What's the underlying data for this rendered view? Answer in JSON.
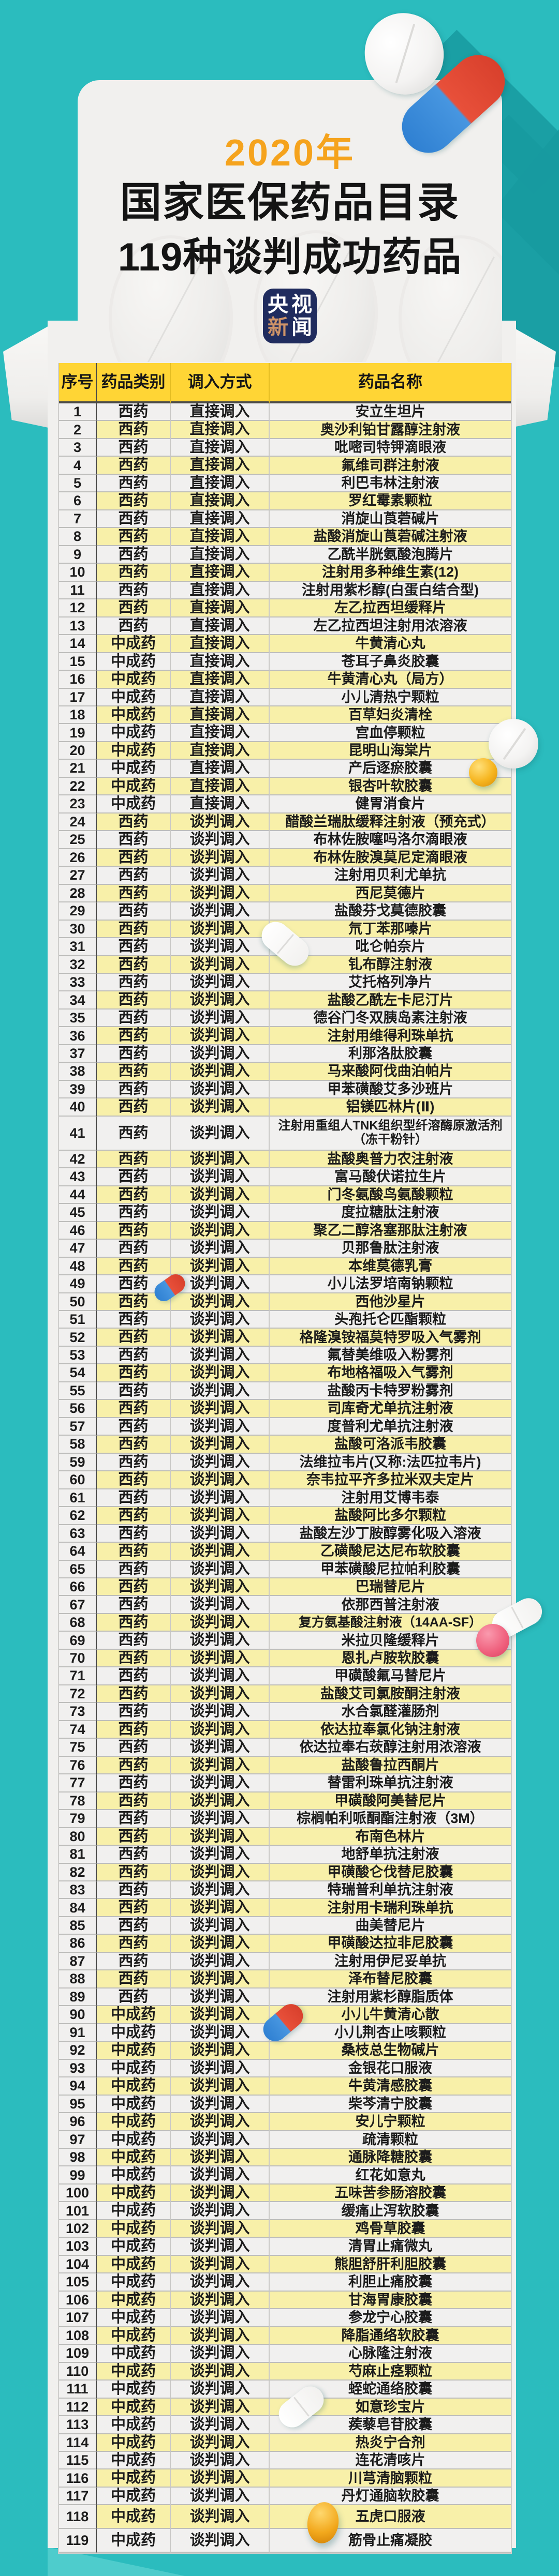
{
  "page": {
    "background_color": "#2bbcbe",
    "card_color": "#f1f0ee",
    "header_yellow": "#ffd535",
    "row_yellow": "#f8f0a9",
    "row_gray": "#f1f0ef",
    "accent_orange": "#f5a31d",
    "logo_navy": "#202c5e"
  },
  "header": {
    "year": "2020年",
    "title": "国家医保药品目录",
    "subtitle": "119种谈判成功药品",
    "logo_char_1": "央",
    "logo_char_2": "视",
    "logo_char_3": "新",
    "logo_char_4": "闻"
  },
  "table": {
    "columns": [
      "序号",
      "药品类别",
      "调入方式",
      "药品名称"
    ],
    "rows": [
      [
        1,
        "西药",
        "直接调入",
        "安立生坦片"
      ],
      [
        2,
        "西药",
        "直接调入",
        "奥沙利铂甘露醇注射液"
      ],
      [
        3,
        "西药",
        "直接调入",
        "吡嘧司特钾滴眼液"
      ],
      [
        4,
        "西药",
        "直接调入",
        "氟维司群注射液"
      ],
      [
        5,
        "西药",
        "直接调入",
        "利巴韦林注射液"
      ],
      [
        6,
        "西药",
        "直接调入",
        "罗红霉素颗粒"
      ],
      [
        7,
        "西药",
        "直接调入",
        "消旋山莨菪碱片"
      ],
      [
        8,
        "西药",
        "直接调入",
        "盐酸消旋山莨菪碱注射液"
      ],
      [
        9,
        "西药",
        "直接调入",
        "乙酰半胱氨酸泡腾片"
      ],
      [
        10,
        "西药",
        "直接调入",
        "注射用多种维生素(12)"
      ],
      [
        11,
        "西药",
        "直接调入",
        "注射用紫杉醇(白蛋白结合型)"
      ],
      [
        12,
        "西药",
        "直接调入",
        "左乙拉西坦缓释片"
      ],
      [
        13,
        "西药",
        "直接调入",
        "左乙拉西坦注射用浓溶液"
      ],
      [
        14,
        "中成药",
        "直接调入",
        "牛黄清心丸"
      ],
      [
        15,
        "中成药",
        "直接调入",
        "苍耳子鼻炎胶囊"
      ],
      [
        16,
        "中成药",
        "直接调入",
        "牛黄清心丸（局方）"
      ],
      [
        17,
        "中成药",
        "直接调入",
        "小儿清热宁颗粒"
      ],
      [
        18,
        "中成药",
        "直接调入",
        "百草妇炎清栓"
      ],
      [
        19,
        "中成药",
        "直接调入",
        "宫血停颗粒"
      ],
      [
        20,
        "中成药",
        "直接调入",
        "昆明山海棠片"
      ],
      [
        21,
        "中成药",
        "直接调入",
        "产后逐瘀胶囊"
      ],
      [
        22,
        "中成药",
        "直接调入",
        "银杏叶软胶囊"
      ],
      [
        23,
        "中成药",
        "直接调入",
        "健胃消食片"
      ],
      [
        24,
        "西药",
        "谈判调入",
        "醋酸兰瑞肽缓释注射液（预充式）"
      ],
      [
        25,
        "西药",
        "谈判调入",
        "布林佐胺噻吗洛尔滴眼液"
      ],
      [
        26,
        "西药",
        "谈判调入",
        "布林佐胺溴莫尼定滴眼液"
      ],
      [
        27,
        "西药",
        "谈判调入",
        "注射用贝利尤单抗"
      ],
      [
        28,
        "西药",
        "谈判调入",
        "西尼莫德片"
      ],
      [
        29,
        "西药",
        "谈判调入",
        "盐酸芬戈莫德胶囊"
      ],
      [
        30,
        "西药",
        "谈判调入",
        "氘丁苯那嗪片"
      ],
      [
        31,
        "西药",
        "谈判调入",
        "吡仑帕奈片"
      ],
      [
        32,
        "西药",
        "谈判调入",
        "钆布醇注射液"
      ],
      [
        33,
        "西药",
        "谈判调入",
        "艾托格列净片"
      ],
      [
        34,
        "西药",
        "谈判调入",
        "盐酸乙酰左卡尼汀片"
      ],
      [
        35,
        "西药",
        "谈判调入",
        "德谷门冬双胰岛素注射液"
      ],
      [
        36,
        "西药",
        "谈判调入",
        "注射用维得利珠单抗"
      ],
      [
        37,
        "西药",
        "谈判调入",
        "利那洛肽胶囊"
      ],
      [
        38,
        "西药",
        "谈判调入",
        "马来酸阿伐曲泊帕片"
      ],
      [
        39,
        "西药",
        "谈判调入",
        "甲苯磺酸艾多沙班片"
      ],
      [
        40,
        "西药",
        "谈判调入",
        "铝镁匹林片(Ⅱ)"
      ],
      [
        41,
        "西药",
        "谈判调入",
        "注射用重组人TNK组织型纤溶酶原激活剂（冻干粉针）"
      ],
      [
        42,
        "西药",
        "谈判调入",
        "盐酸奥普力农注射液"
      ],
      [
        43,
        "西药",
        "谈判调入",
        "富马酸伏诺拉生片"
      ],
      [
        44,
        "西药",
        "谈判调入",
        "门冬氨酸鸟氨酸颗粒"
      ],
      [
        45,
        "西药",
        "谈判调入",
        "度拉糖肽注射液"
      ],
      [
        46,
        "西药",
        "谈判调入",
        "聚乙二醇洛塞那肽注射液"
      ],
      [
        47,
        "西药",
        "谈判调入",
        "贝那鲁肽注射液"
      ],
      [
        48,
        "西药",
        "谈判调入",
        "本维莫德乳膏"
      ],
      [
        49,
        "西药",
        "谈判调入",
        "小儿法罗培南钠颗粒"
      ],
      [
        50,
        "西药",
        "谈判调入",
        "西他沙星片"
      ],
      [
        51,
        "西药",
        "谈判调入",
        "头孢托仑匹酯颗粒"
      ],
      [
        52,
        "西药",
        "谈判调入",
        "格隆溴铵福莫特罗吸入气雾剂"
      ],
      [
        53,
        "西药",
        "谈判调入",
        "氟替美维吸入粉雾剂"
      ],
      [
        54,
        "西药",
        "谈判调入",
        "布地格福吸入气雾剂"
      ],
      [
        55,
        "西药",
        "谈判调入",
        "盐酸丙卡特罗粉雾剂"
      ],
      [
        56,
        "西药",
        "谈判调入",
        "司库奇尤单抗注射液"
      ],
      [
        57,
        "西药",
        "谈判调入",
        "度普利尤单抗注射液"
      ],
      [
        58,
        "西药",
        "谈判调入",
        "盐酸可洛派韦胶囊"
      ],
      [
        59,
        "西药",
        "谈判调入",
        "法维拉韦片(又称:法匹拉韦片)"
      ],
      [
        60,
        "西药",
        "谈判调入",
        "奈韦拉平齐多拉米双夫定片"
      ],
      [
        61,
        "西药",
        "谈判调入",
        "注射用艾博韦泰"
      ],
      [
        62,
        "西药",
        "谈判调入",
        "盐酸阿比多尔颗粒"
      ],
      [
        63,
        "西药",
        "谈判调入",
        "盐酸左沙丁胺醇雾化吸入溶液"
      ],
      [
        64,
        "西药",
        "谈判调入",
        "乙磺酸尼达尼布软胶囊"
      ],
      [
        65,
        "西药",
        "谈判调入",
        "甲苯磺酸尼拉帕利胶囊"
      ],
      [
        66,
        "西药",
        "谈判调入",
        "巴瑞替尼片"
      ],
      [
        67,
        "西药",
        "谈判调入",
        "依那西普注射液"
      ],
      [
        68,
        "西药",
        "谈判调入",
        "复方氨基酸注射液（14AA-SF）"
      ],
      [
        69,
        "西药",
        "谈判调入",
        "米拉贝隆缓释片"
      ],
      [
        70,
        "西药",
        "谈判调入",
        "恩扎卢胺软胶囊"
      ],
      [
        71,
        "西药",
        "谈判调入",
        "甲磺酸氟马替尼片"
      ],
      [
        72,
        "西药",
        "谈判调入",
        "盐酸艾司氯胺酮注射液"
      ],
      [
        73,
        "西药",
        "谈判调入",
        "水合氯醛灌肠剂"
      ],
      [
        74,
        "西药",
        "谈判调入",
        "依达拉奉氯化钠注射液"
      ],
      [
        75,
        "西药",
        "谈判调入",
        "依达拉奉右莰醇注射用浓溶液"
      ],
      [
        76,
        "西药",
        "谈判调入",
        "盐酸鲁拉西酮片"
      ],
      [
        77,
        "西药",
        "谈判调入",
        "替雷利珠单抗注射液"
      ],
      [
        78,
        "西药",
        "谈判调入",
        "甲磺酸阿美替尼片"
      ],
      [
        79,
        "西药",
        "谈判调入",
        "棕榈帕利哌酮酯注射液（3M）"
      ],
      [
        80,
        "西药",
        "谈判调入",
        "布南色林片"
      ],
      [
        81,
        "西药",
        "谈判调入",
        "地舒单抗注射液"
      ],
      [
        82,
        "西药",
        "谈判调入",
        "甲磺酸仑伐替尼胶囊"
      ],
      [
        83,
        "西药",
        "谈判调入",
        "特瑞普利单抗注射液"
      ],
      [
        84,
        "西药",
        "谈判调入",
        "注射用卡瑞利珠单抗"
      ],
      [
        85,
        "西药",
        "谈判调入",
        "曲美替尼片"
      ],
      [
        86,
        "西药",
        "谈判调入",
        "甲磺酸达拉非尼胶囊"
      ],
      [
        87,
        "西药",
        "谈判调入",
        "注射用伊尼妥单抗"
      ],
      [
        88,
        "西药",
        "谈判调入",
        "泽布替尼胶囊"
      ],
      [
        89,
        "西药",
        "谈判调入",
        "注射用紫杉醇脂质体"
      ],
      [
        90,
        "中成药",
        "谈判调入",
        "小儿牛黄清心散"
      ],
      [
        91,
        "中成药",
        "谈判调入",
        "小儿荆杏止咳颗粒"
      ],
      [
        92,
        "中成药",
        "谈判调入",
        "桑枝总生物碱片"
      ],
      [
        93,
        "中成药",
        "谈判调入",
        "金银花口服液"
      ],
      [
        94,
        "中成药",
        "谈判调入",
        "牛黄清感胶囊"
      ],
      [
        95,
        "中成药",
        "谈判调入",
        "柴芩清宁胶囊"
      ],
      [
        96,
        "中成药",
        "谈判调入",
        "安儿宁颗粒"
      ],
      [
        97,
        "中成药",
        "谈判调入",
        "疏清颗粒"
      ],
      [
        98,
        "中成药",
        "谈判调入",
        "通脉降糖胶囊"
      ],
      [
        99,
        "中成药",
        "谈判调入",
        "红花如意丸"
      ],
      [
        100,
        "中成药",
        "谈判调入",
        "五味苦参肠溶胶囊"
      ],
      [
        101,
        "中成药",
        "谈判调入",
        "缓痛止泻软胶囊"
      ],
      [
        102,
        "中成药",
        "谈判调入",
        "鸡骨草胶囊"
      ],
      [
        103,
        "中成药",
        "谈判调入",
        "清胃止痛微丸"
      ],
      [
        104,
        "中成药",
        "谈判调入",
        "熊胆舒肝利胆胶囊"
      ],
      [
        105,
        "中成药",
        "谈判调入",
        "利胆止痛胶囊"
      ],
      [
        106,
        "中成药",
        "谈判调入",
        "甘海胃康胶囊"
      ],
      [
        107,
        "中成药",
        "谈判调入",
        "参龙宁心胶囊"
      ],
      [
        108,
        "中成药",
        "谈判调入",
        "降脂通络软胶囊"
      ],
      [
        109,
        "中成药",
        "谈判调入",
        "心脉隆注射液"
      ],
      [
        110,
        "中成药",
        "谈判调入",
        "芍麻止痉颗粒"
      ],
      [
        111,
        "中成药",
        "谈判调入",
        "蛭蛇通络胶囊"
      ],
      [
        112,
        "中成药",
        "谈判调入",
        "如意珍宝片"
      ],
      [
        113,
        "中成药",
        "谈判调入",
        "蒺藜皂苷胶囊"
      ],
      [
        114,
        "中成药",
        "谈判调入",
        "热炎宁合剂"
      ],
      [
        115,
        "中成药",
        "谈判调入",
        "连花清咳片"
      ],
      [
        116,
        "中成药",
        "谈判调入",
        "川芎清脑颗粒"
      ],
      [
        117,
        "中成药",
        "谈判调入",
        "丹灯通脑软胶囊"
      ],
      [
        118,
        "中成药",
        "谈判调入",
        "五虎口服液"
      ],
      [
        119,
        "中成药",
        "谈判调入",
        "筋骨止痛凝胶"
      ]
    ],
    "tall_rows": {
      "41": 66,
      "118": 46,
      "119": 46
    },
    "default_row_height": 34
  }
}
